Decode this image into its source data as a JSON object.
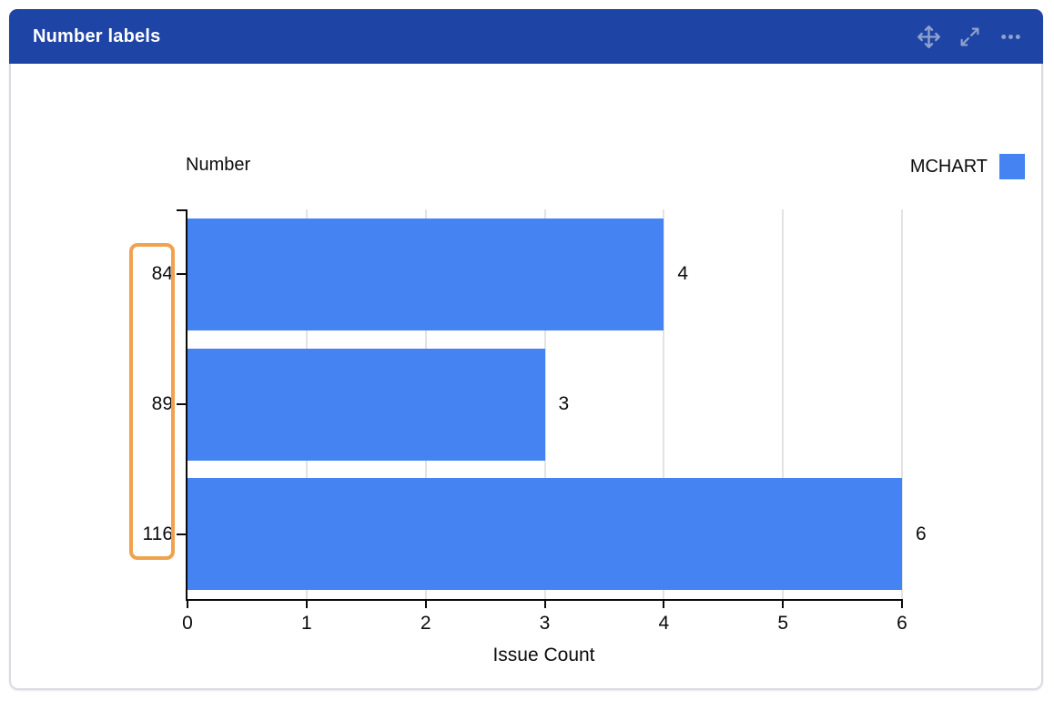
{
  "window": {
    "title": "Number labels",
    "toolbar_icons": [
      "move-icon",
      "resize-icon",
      "more-options-icon"
    ]
  },
  "chart_data": {
    "type": "bar",
    "orientation": "horizontal",
    "title": "Number",
    "xlabel": "Issue Count",
    "categories": [
      "84",
      "89",
      "116"
    ],
    "values": [
      4,
      3,
      6
    ],
    "data_labels": [
      "4",
      "3",
      "6"
    ],
    "series_name": "MCHART",
    "legend": [
      {
        "name": "MCHART",
        "color": "#4582f2"
      }
    ],
    "legend_position": "top-right",
    "xlim": [
      0,
      6
    ],
    "x_ticks": [
      0,
      1,
      2,
      3,
      4,
      5,
      6
    ],
    "grid": true,
    "bar_color": "#4582f2",
    "annotation": {
      "type": "highlight-box",
      "around": "y-axis-category-labels",
      "color": "#f0a24e"
    }
  },
  "colors": {
    "header_bg": "#1e44a5",
    "header_text": "#ffffff",
    "header_icon": "#8ea1cc",
    "bar": "#4582f2",
    "axis": "#0b0b0b",
    "gridline": "#e3e3e3",
    "card_border": "#d8dbe2",
    "annotation": "#f0a24e"
  }
}
